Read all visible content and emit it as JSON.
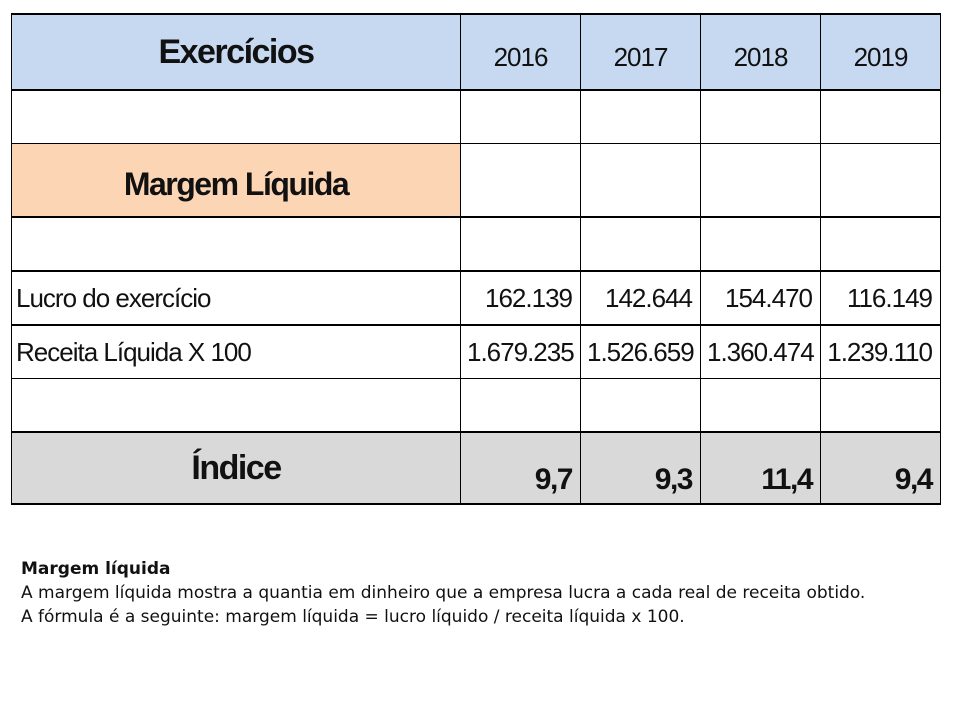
{
  "table": {
    "header": {
      "label": "Exercícios",
      "years": [
        "2016",
        "2017",
        "2018",
        "2019"
      ]
    },
    "section_label": "Margem Líquida",
    "rows": [
      {
        "label": "Lucro do exercício",
        "values": [
          "162.139",
          "142.644",
          "154.470",
          "116.149"
        ]
      },
      {
        "label": "Receita Líquida X 100",
        "values": [
          "1.679.235",
          "1.526.659",
          "1.360.474",
          "1.239.110"
        ]
      }
    ],
    "index": {
      "label": "Índice",
      "values": [
        "9,7",
        "9,3",
        "11,4",
        "9,4"
      ]
    },
    "colors": {
      "header_bg": "#c6d9f1",
      "section_bg": "#fcd5b5",
      "index_bg": "#d9d9d9"
    }
  },
  "note": {
    "title": "Margem líquida",
    "line1": "A margem líquida mostra a quantia em dinheiro que a empresa lucra a cada real de receita obtido.",
    "line2": "A fórmula é a seguinte: margem líquida = lucro líquido / receita líquida x 100."
  }
}
